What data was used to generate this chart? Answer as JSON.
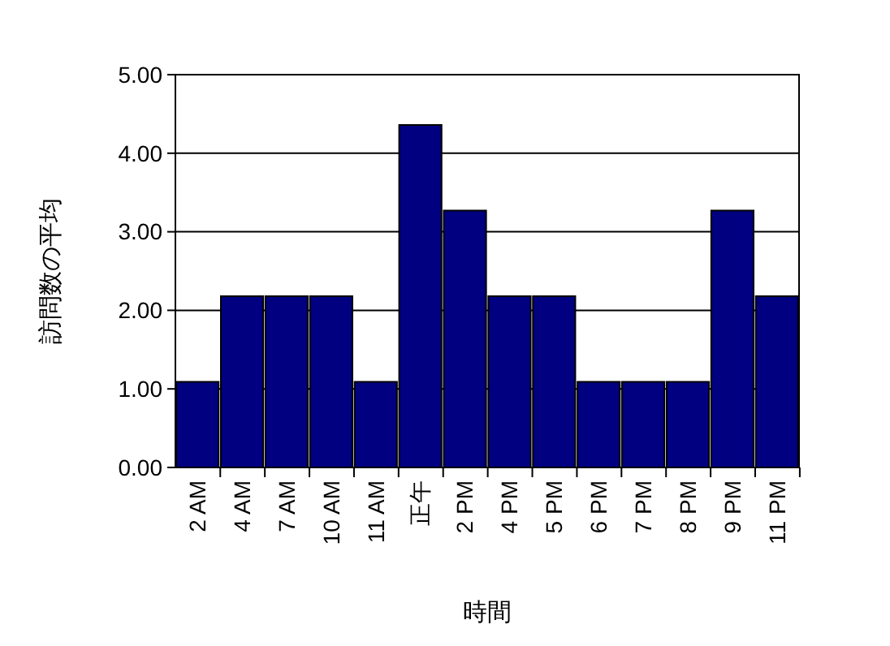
{
  "chart_data": {
    "type": "bar",
    "xlabel": "時間",
    "ylabel": "訪問数の平均",
    "categories": [
      "2 AM",
      "4 AM",
      "7 AM",
      "10 AM",
      "11 AM",
      "正午",
      "2 PM",
      "4 PM",
      "5 PM",
      "6 PM",
      "7 PM",
      "8 PM",
      "9 PM",
      "11 PM"
    ],
    "values": [
      1.09,
      2.18,
      2.18,
      2.18,
      1.09,
      4.36,
      3.27,
      2.18,
      2.18,
      1.09,
      1.09,
      1.09,
      3.27,
      2.18
    ],
    "color": "#000080",
    "ylim": [
      0,
      5
    ],
    "yticks": [
      {
        "value": 0,
        "label": "0.00"
      },
      {
        "value": 1,
        "label": "1.00"
      },
      {
        "value": 2,
        "label": "2.00"
      },
      {
        "value": 3,
        "label": "3.00"
      },
      {
        "value": 4,
        "label": "4.00"
      },
      {
        "value": 5,
        "label": "5.00"
      }
    ],
    "grid": "y"
  }
}
